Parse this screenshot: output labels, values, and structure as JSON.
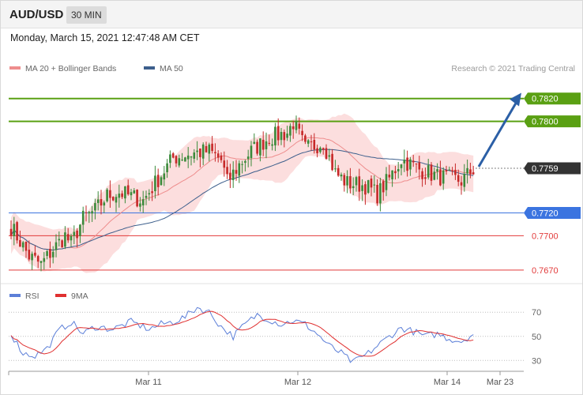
{
  "header": {
    "symbol": "AUD/USD",
    "interval": "30 MIN"
  },
  "datetime": "Monday, March 15, 2021 12:47:48 AM CET",
  "credit": "Research © 2021 Trading Central",
  "colors": {
    "resistance": "#5aa013",
    "support_strong": "#3b74e0",
    "support": "#e23a3a",
    "bull": "#3a8a3a",
    "bear": "#c62828",
    "ma20": "#ee8d8d",
    "ma50": "#3d5f8c",
    "band": "#fbd3d3",
    "arrow": "#2b5fa6",
    "rsi": "#5c7fd8",
    "rsi_ma": "#e03030",
    "current": "#333333"
  },
  "chart_data": [
    {
      "type": "candlestick",
      "title": "AUD/USD",
      "legend": [
        {
          "name": "MA 20 + Bollinger Bands",
          "color": "#ee8d8d"
        },
        {
          "name": "MA 50",
          "color": "#3d5f8c"
        }
      ],
      "ylim": [
        0.7663,
        0.7835
      ],
      "current_price": {
        "value": 0.7759,
        "label": "0.7759"
      },
      "levels": [
        {
          "value": 0.782,
          "label": "0.7820",
          "kind": "resistance"
        },
        {
          "value": 0.78,
          "label": "0.7800",
          "kind": "resistance"
        },
        {
          "value": 0.772,
          "label": "0.7720",
          "kind": "support_strong"
        },
        {
          "value": 0.77,
          "label": "0.7700",
          "kind": "support"
        },
        {
          "value": 0.767,
          "label": "0.7670",
          "kind": "support"
        }
      ],
      "anchors": [
        [
          0,
          0.7708
        ],
        [
          6,
          0.7682
        ],
        [
          10,
          0.7675
        ],
        [
          14,
          0.7688
        ],
        [
          18,
          0.77
        ],
        [
          20,
          0.7693
        ],
        [
          24,
          0.7715
        ],
        [
          28,
          0.7722
        ],
        [
          32,
          0.7735
        ],
        [
          36,
          0.7738
        ],
        [
          44,
          0.7731
        ],
        [
          48,
          0.7746
        ],
        [
          54,
          0.7768
        ],
        [
          60,
          0.7772
        ],
        [
          66,
          0.7774
        ],
        [
          70,
          0.7766
        ],
        [
          72,
          0.7747
        ],
        [
          76,
          0.7762
        ],
        [
          80,
          0.7774
        ],
        [
          86,
          0.7786
        ],
        [
          92,
          0.779
        ],
        [
          94,
          0.7799
        ],
        [
          98,
          0.7776
        ],
        [
          104,
          0.7782
        ],
        [
          108,
          0.7755
        ],
        [
          112,
          0.7746
        ],
        [
          118,
          0.7744
        ],
        [
          122,
          0.7736
        ],
        [
          126,
          0.775
        ],
        [
          130,
          0.7767
        ],
        [
          136,
          0.7758
        ],
        [
          142,
          0.7752
        ],
        [
          146,
          0.775
        ],
        [
          150,
          0.7748
        ],
        [
          154,
          0.7758
        ]
      ],
      "projection": {
        "from": 0.7759,
        "to": 0.7825
      },
      "x_ticks": [
        "Mar 11",
        "Mar 12",
        "Mar 14",
        "Mar 23"
      ]
    },
    {
      "type": "line",
      "legend": [
        {
          "name": "RSI",
          "color": "#5c7fd8"
        },
        {
          "name": "9MA",
          "color": "#e03030"
        }
      ],
      "ylim": [
        23,
        78
      ],
      "y_ticks": [
        70,
        50,
        30
      ],
      "anchors": [
        [
          0,
          52
        ],
        [
          4,
          36
        ],
        [
          8,
          34
        ],
        [
          12,
          40
        ],
        [
          16,
          55
        ],
        [
          20,
          62
        ],
        [
          24,
          52
        ],
        [
          28,
          58
        ],
        [
          34,
          56
        ],
        [
          40,
          62
        ],
        [
          46,
          56
        ],
        [
          50,
          60
        ],
        [
          54,
          62
        ],
        [
          58,
          66
        ],
        [
          62,
          74
        ],
        [
          66,
          70
        ],
        [
          70,
          58
        ],
        [
          74,
          50
        ],
        [
          78,
          60
        ],
        [
          82,
          68
        ],
        [
          86,
          64
        ],
        [
          90,
          60
        ],
        [
          94,
          63
        ],
        [
          98,
          60
        ],
        [
          102,
          52
        ],
        [
          106,
          42
        ],
        [
          110,
          36
        ],
        [
          114,
          28
        ],
        [
          116,
          32
        ],
        [
          118,
          34
        ],
        [
          122,
          42
        ],
        [
          126,
          50
        ],
        [
          130,
          57
        ],
        [
          134,
          54
        ],
        [
          138,
          50
        ],
        [
          142,
          52
        ],
        [
          146,
          48
        ],
        [
          150,
          46
        ],
        [
          154,
          52
        ]
      ]
    }
  ]
}
